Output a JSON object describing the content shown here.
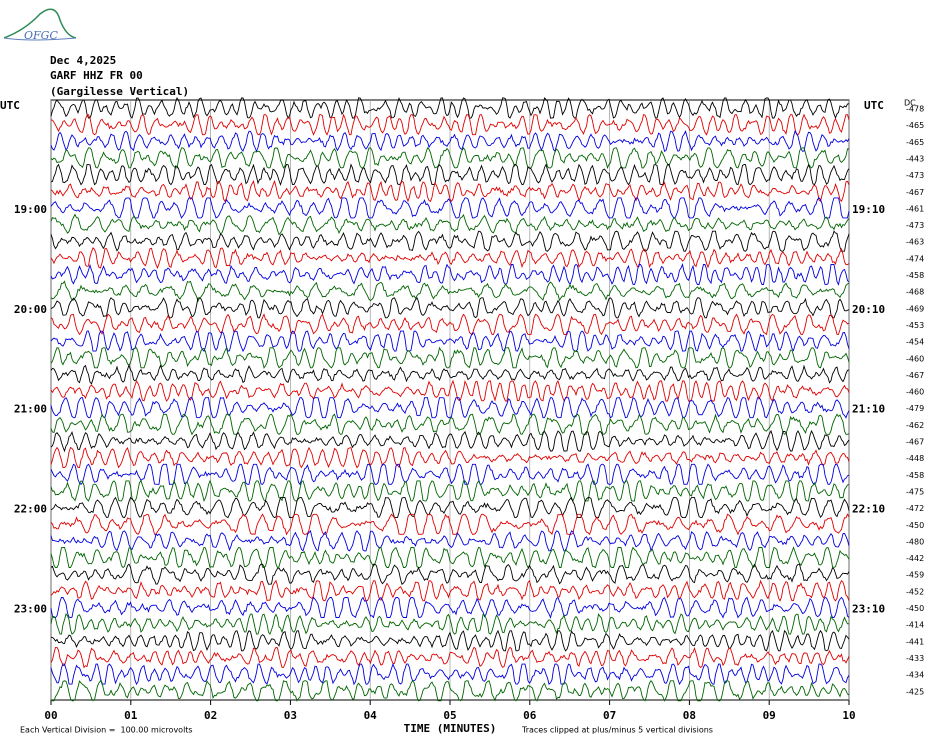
{
  "chart_data": {
    "type": "helicorder",
    "logo": "OFGC",
    "title": [
      "Dec 4,2025",
      "GARF HHZ FR 00",
      "(Gargilesse Vertical)"
    ],
    "left_axis_title": "UTC",
    "right_axis_title": "UTC",
    "dc_label": "DC",
    "left_labels": [
      "19:00",
      "20:00",
      "21:00",
      "22:00",
      "23:00"
    ],
    "right_labels": [
      "19:10",
      "20:10",
      "21:10",
      "22:10",
      "23:10"
    ],
    "dc_values": [
      -478,
      -465,
      -465,
      -443,
      -473,
      -467,
      -461,
      -473,
      -463,
      -474,
      -458,
      -468,
      -469,
      -453,
      -454,
      -460,
      -467,
      -460,
      -479,
      -462,
      -467,
      -448,
      -458,
      -475,
      -472,
      -450,
      -480,
      -442,
      -459,
      -452,
      -450,
      -414,
      -441,
      -433,
      -434,
      -425
    ],
    "trace_colors": [
      "#000000",
      "#e00000",
      "#0000e0",
      "#006400"
    ],
    "xlabel": "TIME (MINUTES)",
    "xlim": [
      0,
      10
    ],
    "xticks": [
      {
        "value": 0,
        "label": "00"
      },
      {
        "value": 1,
        "label": "01"
      },
      {
        "value": 2,
        "label": "02"
      },
      {
        "value": 3,
        "label": "03"
      },
      {
        "value": 4,
        "label": "04"
      },
      {
        "value": 5,
        "label": "05"
      },
      {
        "value": 6,
        "label": "06"
      },
      {
        "value": 7,
        "label": "07"
      },
      {
        "value": 8,
        "label": "08"
      },
      {
        "value": 9,
        "label": "09"
      },
      10
    ],
    "grid": true,
    "footer_left": "Each Vertical Division =  100.00 microvolts",
    "footer_right": "Traces clipped at plus/minus 5 vertical divisions"
  }
}
